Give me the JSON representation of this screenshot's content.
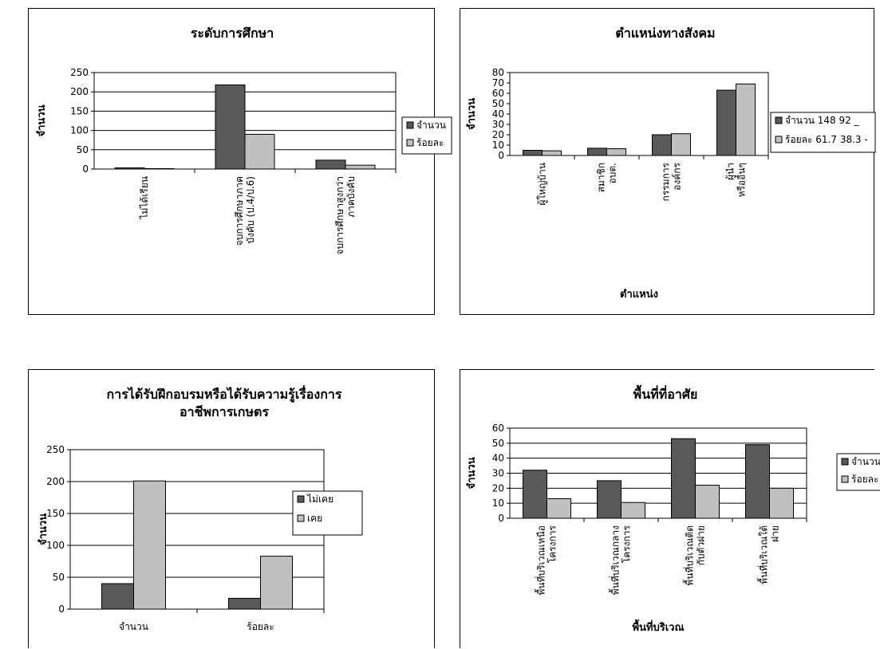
{
  "colors": {
    "series_dark": "#595959",
    "series_light": "#c0c0c0",
    "grid": "#000000"
  },
  "chart_data": [
    {
      "type": "bar",
      "title": "ระดับการศึกษา",
      "title_lines": [
        "ระดับการศึกษา"
      ],
      "ylabel": "จำนวน",
      "xlabel": "",
      "ylim": [
        0,
        250
      ],
      "yticks": [
        0,
        50,
        100,
        150,
        200,
        250
      ],
      "grid": true,
      "legend_position": "right",
      "categories": [
        "ไม่ได้เรียน",
        "จบการศึกษาภาคบังคับ (ป.4/ป.6)",
        "จบการศึกษาสูงกว่าภาคบังคับ"
      ],
      "category_lines": [
        [
          "ไม่ได้เรียน"
        ],
        [
          "จบการศึกษาภาค",
          "บังคับ (ป.4/ป.6)"
        ],
        [
          "จบการศึกษาสูงกว่า",
          "ภาคบังคับ"
        ]
      ],
      "series": [
        {
          "name": "จำนวน",
          "values": [
            3,
            218,
            23
          ]
        },
        {
          "name": "ร้อยละ",
          "values": [
            1,
            90,
            10
          ]
        }
      ]
    },
    {
      "type": "bar",
      "title": "ตำแหน่งทางสังคม",
      "title_lines": [
        "ตำแหน่งทางสังคม"
      ],
      "ylabel": "จำนวน",
      "xlabel": "ตำแหน่ง",
      "ylim": [
        0,
        80
      ],
      "yticks": [
        0,
        10,
        20,
        30,
        40,
        50,
        60,
        70,
        80
      ],
      "grid": false,
      "legend_position": "right",
      "categories": [
        "ผู้ใหญ่บ้าน",
        "สมาชิก อบต.",
        "กรรมการ องค์กร",
        "ผู้นำ หรืออื่นๆ"
      ],
      "category_lines": [
        [
          "ผู้ใหญ่บ้าน"
        ],
        [
          "สมาชิก",
          "อบต."
        ],
        [
          "กรรมการ",
          "องค์กร"
        ],
        [
          "ผู้นำ",
          "หรืออื่นๆ"
        ]
      ],
      "series": [
        {
          "name": "จำนวน 148 92 _",
          "values": [
            5,
            7,
            20,
            63
          ]
        },
        {
          "name": "ร้อยละ 61.7 38.3 -",
          "values": [
            4.5,
            6.5,
            21,
            69
          ]
        }
      ]
    },
    {
      "type": "bar",
      "title": "การได้รับฝึกอบรมหรือได้รับความรู้เรื่องการอาชีพการเกษตร",
      "title_lines": [
        "การได้รับฝึกอบรมหรือได้รับความรู้เรื่องการ",
        "อาชีพการเกษตร"
      ],
      "ylabel": "จำนวน",
      "xlabel": "",
      "ylim": [
        0,
        250
      ],
      "yticks": [
        0,
        50,
        100,
        150,
        200,
        250
      ],
      "grid": true,
      "legend_position": "right",
      "categories": [
        "จำนวน",
        "ร้อยละ"
      ],
      "category_lines": [
        [
          "จำนวน"
        ],
        [
          "ร้อยละ"
        ]
      ],
      "series": [
        {
          "name": "ไม่เคย",
          "values": [
            40,
            17
          ]
        },
        {
          "name": "เคย",
          "values": [
            201,
            83
          ]
        }
      ]
    },
    {
      "type": "bar",
      "title": "พื้นที่ที่อาศัย",
      "title_lines": [
        "พื้นที่ที่อาศัย"
      ],
      "ylabel": "จำนวน",
      "xlabel": "พื้นที่บริเวณ",
      "ylim": [
        0,
        60
      ],
      "yticks": [
        0,
        10,
        20,
        30,
        40,
        50,
        60
      ],
      "grid": true,
      "legend_position": "right",
      "categories": [
        "พื้นที่บริเวณเหนือโครงการ",
        "พื้นที่บริเวณกลางโครงการ",
        "พื้นที่บริเวณติดกับตัวฝาย",
        "พื้นที่บริเวณใต้ฝาย"
      ],
      "category_lines": [
        [
          "พื้นที่บริเวณเหนือ",
          "โครงการ"
        ],
        [
          "พื้นที่บริเวณกลาง",
          "โครงการ"
        ],
        [
          "พื้นที่บริเวณติด",
          "กับตัวฝาย"
        ],
        [
          "พื้นที่บริเวณใต้",
          "ฝาย"
        ]
      ],
      "series": [
        {
          "name": "จำนวน",
          "values": [
            32,
            25,
            53,
            49
          ]
        },
        {
          "name": "ร้อยละ",
          "values": [
            13,
            10.5,
            22,
            20
          ]
        }
      ]
    }
  ]
}
